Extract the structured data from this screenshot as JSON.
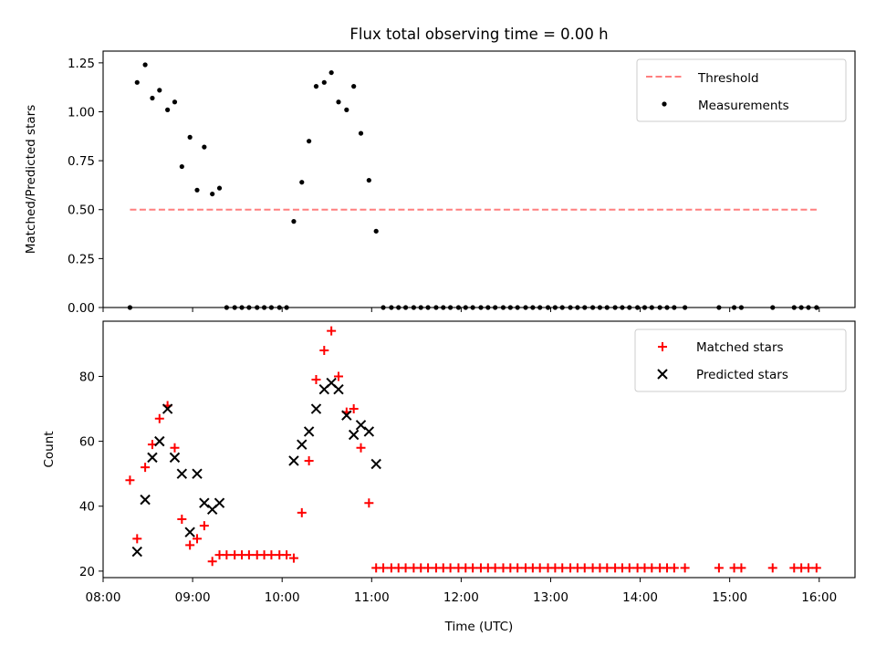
{
  "chart_data": [
    {
      "type": "scatter",
      "title": "Flux total observing time = 0.00 h",
      "xlabel": "",
      "ylabel": "Matched/Predicted stars",
      "xlim": [
        8.0,
        16.4
      ],
      "ylim": [
        0.0,
        1.31
      ],
      "yticks": [
        0.0,
        0.25,
        0.5,
        0.75,
        1.0,
        1.25
      ],
      "ytick_labels": [
        "0.00",
        "0.25",
        "0.50",
        "0.75",
        "1.00",
        "1.25"
      ],
      "legend_position": "top-right",
      "legend": [
        {
          "key": "threshold",
          "label": "Threshold"
        },
        {
          "key": "measurements",
          "label": "Measurements"
        }
      ],
      "threshold": {
        "value": 0.5,
        "x_start": 8.3,
        "x_end": 15.98,
        "color": "#ff7f7f"
      },
      "measurements": {
        "color": "#000000",
        "x": [
          8.3,
          8.38,
          8.47,
          8.55,
          8.63,
          8.72,
          8.8,
          8.88,
          8.97,
          9.05,
          9.13,
          9.22,
          9.3,
          9.38,
          9.47,
          9.55,
          9.63,
          9.72,
          9.8,
          9.88,
          9.97,
          10.05,
          10.13,
          10.22,
          10.3,
          10.38,
          10.47,
          10.55,
          10.63,
          10.72,
          10.8,
          10.88,
          10.97,
          11.05,
          11.13,
          11.22,
          11.3,
          11.38,
          11.47,
          11.55,
          11.63,
          11.72,
          11.8,
          11.88,
          11.97,
          12.05,
          12.13,
          12.22,
          12.3,
          12.38,
          12.47,
          12.55,
          12.63,
          12.72,
          12.8,
          12.88,
          12.97,
          13.05,
          13.13,
          13.22,
          13.3,
          13.38,
          13.47,
          13.55,
          13.63,
          13.72,
          13.8,
          13.88,
          13.97,
          14.05,
          14.13,
          14.22,
          14.3,
          14.38,
          14.5,
          14.88,
          15.05,
          15.13,
          15.48,
          15.72,
          15.8,
          15.88,
          15.97
        ],
        "y": [
          0.0,
          1.15,
          1.24,
          1.07,
          1.11,
          1.01,
          1.05,
          0.72,
          0.87,
          0.6,
          0.82,
          0.58,
          0.61,
          0.0,
          0.0,
          0.0,
          0.0,
          0.0,
          0.0,
          0.0,
          0.0,
          0.0,
          0.44,
          0.64,
          0.85,
          1.13,
          1.15,
          1.2,
          1.05,
          1.01,
          1.13,
          0.89,
          0.65,
          0.39,
          0.0,
          0.0,
          0.0,
          0.0,
          0.0,
          0.0,
          0.0,
          0.0,
          0.0,
          0.0,
          0.0,
          0.0,
          0.0,
          0.0,
          0.0,
          0.0,
          0.0,
          0.0,
          0.0,
          0.0,
          0.0,
          0.0,
          0.0,
          0.0,
          0.0,
          0.0,
          0.0,
          0.0,
          0.0,
          0.0,
          0.0,
          0.0,
          0.0,
          0.0,
          0.0,
          0.0,
          0.0,
          0.0,
          0.0,
          0.0,
          0.0,
          0.0,
          0.0,
          0.0,
          0.0,
          0.0,
          0.0,
          0.0,
          0.0
        ]
      }
    },
    {
      "type": "scatter",
      "title": "",
      "xlabel": "Time (UTC)",
      "ylabel": "Count",
      "xlim": [
        8.0,
        16.4
      ],
      "ylim": [
        18.0,
        97.0
      ],
      "yticks": [
        20,
        40,
        60,
        80
      ],
      "ytick_labels": [
        "20",
        "40",
        "60",
        "80"
      ],
      "xticks": [
        8,
        9,
        10,
        11,
        12,
        13,
        14,
        15,
        16
      ],
      "xtick_labels": [
        "08:00",
        "09:00",
        "10:00",
        "11:00",
        "12:00",
        "13:00",
        "14:00",
        "15:00",
        "16:00"
      ],
      "legend_position": "top-right",
      "legend": [
        {
          "key": "matched",
          "label": "Matched stars"
        },
        {
          "key": "predicted",
          "label": "Predicted stars"
        }
      ],
      "matched": {
        "color": "#ff0000",
        "marker": "plus",
        "x": [
          8.3,
          8.38,
          8.47,
          8.55,
          8.63,
          8.72,
          8.8,
          8.88,
          8.97,
          9.05,
          9.13,
          9.22,
          9.3,
          9.38,
          9.47,
          9.55,
          9.63,
          9.72,
          9.8,
          9.88,
          9.97,
          10.05,
          10.13,
          10.22,
          10.3,
          10.38,
          10.47,
          10.55,
          10.63,
          10.72,
          10.8,
          10.88,
          10.97,
          11.05,
          11.13,
          11.22,
          11.3,
          11.38,
          11.47,
          11.55,
          11.63,
          11.72,
          11.8,
          11.88,
          11.97,
          12.05,
          12.13,
          12.22,
          12.3,
          12.38,
          12.47,
          12.55,
          12.63,
          12.72,
          12.8,
          12.88,
          12.97,
          13.05,
          13.13,
          13.22,
          13.3,
          13.38,
          13.47,
          13.55,
          13.63,
          13.72,
          13.8,
          13.88,
          13.97,
          14.05,
          14.13,
          14.22,
          14.3,
          14.38,
          14.5,
          14.88,
          15.05,
          15.13,
          15.48,
          15.72,
          15.8,
          15.88,
          15.97
        ],
        "y": [
          48,
          30,
          52,
          59,
          67,
          71,
          58,
          36,
          28,
          30,
          34,
          23,
          25,
          25,
          25,
          25,
          25,
          25,
          25,
          25,
          25,
          25,
          24,
          38,
          54,
          79,
          88,
          94,
          80,
          69,
          70,
          58,
          41,
          21,
          21,
          21,
          21,
          21,
          21,
          21,
          21,
          21,
          21,
          21,
          21,
          21,
          21,
          21,
          21,
          21,
          21,
          21,
          21,
          21,
          21,
          21,
          21,
          21,
          21,
          21,
          21,
          21,
          21,
          21,
          21,
          21,
          21,
          21,
          21,
          21,
          21,
          21,
          21,
          21,
          21,
          21,
          21,
          21,
          21,
          21,
          21,
          21,
          21
        ]
      },
      "predicted": {
        "color": "#000000",
        "marker": "x",
        "x": [
          8.38,
          8.47,
          8.55,
          8.63,
          8.72,
          8.8,
          8.88,
          8.97,
          9.05,
          9.13,
          9.22,
          9.3,
          10.13,
          10.22,
          10.3,
          10.38,
          10.47,
          10.55,
          10.63,
          10.72,
          10.8,
          10.88,
          10.97,
          11.05
        ],
        "y": [
          26,
          42,
          55,
          60,
          70,
          55,
          50,
          32,
          50,
          41,
          39,
          41,
          54,
          59,
          63,
          70,
          76,
          78,
          76,
          68,
          62,
          65,
          63,
          53
        ]
      }
    }
  ]
}
